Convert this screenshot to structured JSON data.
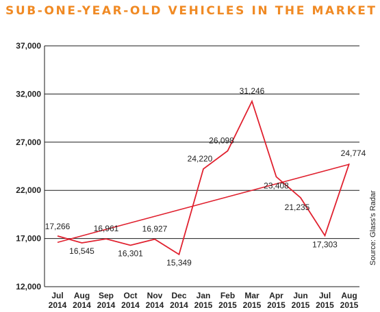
{
  "chart_data": {
    "type": "line",
    "title": "SUB-ONE-YEAR-OLD VEHICLES IN THE MARKET",
    "source": "Source: Glass's Radar",
    "categories": [
      [
        "Jul",
        "2014"
      ],
      [
        "Aug",
        "2014"
      ],
      [
        "Sep",
        "2014"
      ],
      [
        "Oct",
        "2014"
      ],
      [
        "Nov",
        "2014"
      ],
      [
        "Dec",
        "2014"
      ],
      [
        "Jan",
        "2015"
      ],
      [
        "Feb",
        "2015"
      ],
      [
        "Mar",
        "2015"
      ],
      [
        "Apr",
        "2015"
      ],
      [
        "Jun",
        "2015"
      ],
      [
        "Jul",
        "2015"
      ],
      [
        "Aug",
        "2015"
      ]
    ],
    "series": [
      {
        "values": [
          17266,
          16545,
          16961,
          16301,
          16927,
          15349,
          24220,
          26098,
          31246,
          23408,
          21235,
          17303,
          24774
        ],
        "labels": [
          "17,266",
          "16,545",
          "16,961",
          "16,301",
          "16,927",
          "15,349",
          "24,220",
          "26,098",
          "31,246",
          "23,408",
          "21,235",
          "17,303",
          "24,774"
        ],
        "color": "#e0202e"
      }
    ],
    "trendline": {
      "from": 16600,
      "to": 24700,
      "color": "#e0202e"
    },
    "ylim": [
      12000,
      37000
    ],
    "yticks": [
      12000,
      17000,
      22000,
      27000,
      32000,
      37000
    ],
    "ytick_labels": [
      "12,000",
      "17,000",
      "22,000",
      "27,000",
      "32,000",
      "37,000"
    ],
    "grid": true,
    "gridline_color": "#1a1a1a"
  }
}
